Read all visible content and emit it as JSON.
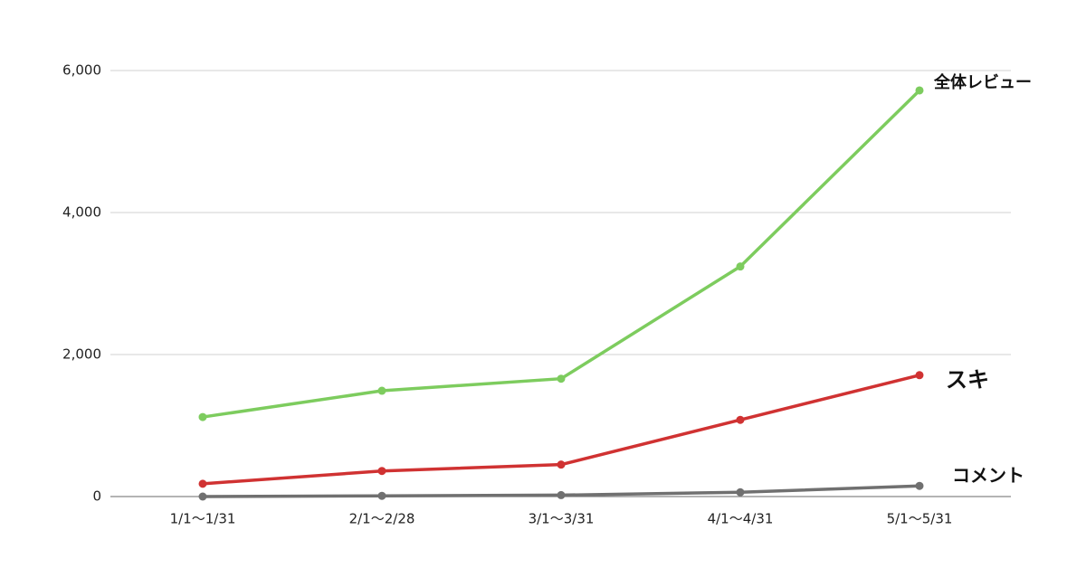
{
  "chart_data": {
    "type": "line",
    "categories": [
      "1/1〜1/31",
      "2/1〜2/28",
      "3/1〜3/31",
      "4/1〜4/31",
      "5/1〜5/31"
    ],
    "series": [
      {
        "name": "全体レビュー",
        "color": "#7dcc5e",
        "values": [
          1120,
          1490,
          1660,
          3240,
          5720
        ]
      },
      {
        "name": "スキ",
        "color": "#d03232",
        "values": [
          180,
          360,
          450,
          1080,
          1710
        ]
      },
      {
        "name": "コメント",
        "color": "#707070",
        "values": [
          0,
          10,
          20,
          60,
          150
        ]
      }
    ],
    "ylim": [
      0,
      6000
    ],
    "yticks": [
      0,
      {
        "value": 2000,
        "label": "2,000"
      },
      {
        "value": 4000,
        "label": "4,000"
      },
      {
        "value": 6000,
        "label": "6,000"
      }
    ],
    "grid": true
  }
}
